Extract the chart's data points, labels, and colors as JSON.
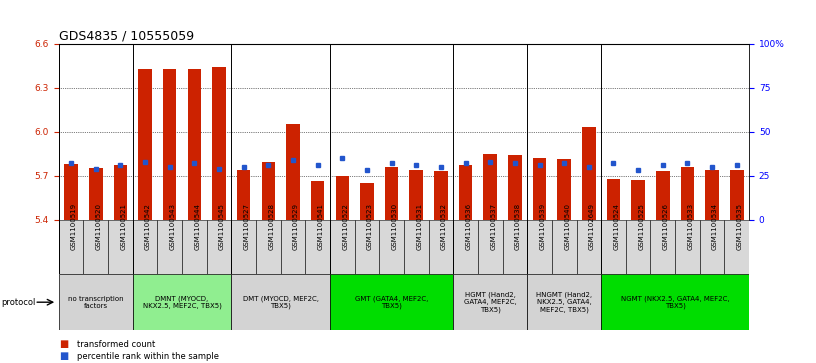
{
  "title": "GDS4835 / 10555059",
  "samples": [
    "GSM1100519",
    "GSM1100520",
    "GSM1100521",
    "GSM1100542",
    "GSM1100543",
    "GSM1100544",
    "GSM1100545",
    "GSM1100527",
    "GSM1100528",
    "GSM1100529",
    "GSM1100541",
    "GSM1100522",
    "GSM1100523",
    "GSM1100530",
    "GSM1100531",
    "GSM1100532",
    "GSM1100536",
    "GSM1100537",
    "GSM1100538",
    "GSM1100539",
    "GSM1100540",
    "GSM1102649",
    "GSM1100524",
    "GSM1100525",
    "GSM1100526",
    "GSM1100533",
    "GSM1100534",
    "GSM1100535"
  ],
  "red_values": [
    5.78,
    5.75,
    5.77,
    6.43,
    6.43,
    6.43,
    6.44,
    5.74,
    5.79,
    6.05,
    5.66,
    5.7,
    5.65,
    5.76,
    5.74,
    5.73,
    5.77,
    5.85,
    5.84,
    5.82,
    5.81,
    6.03,
    5.68,
    5.67,
    5.73,
    5.76,
    5.74,
    5.74
  ],
  "blue_values": [
    32,
    29,
    31,
    33,
    30,
    32,
    29,
    30,
    31,
    34,
    31,
    35,
    28,
    32,
    31,
    30,
    32,
    33,
    32,
    31,
    32,
    30,
    32,
    28,
    31,
    32,
    30,
    31
  ],
  "y_min": 5.4,
  "y_max": 6.6,
  "y_ticks_red": [
    5.4,
    5.7,
    6.0,
    6.3,
    6.6
  ],
  "y_ticks_blue": [
    0,
    25,
    50,
    75,
    100
  ],
  "protocol_groups": [
    {
      "label": "no transcription\nfactors",
      "color": "#d3d3d3",
      "start": 0,
      "end": 3
    },
    {
      "label": "DMNT (MYOCD,\nNKX2.5, MEF2C, TBX5)",
      "color": "#90ee90",
      "start": 3,
      "end": 7
    },
    {
      "label": "DMT (MYOCD, MEF2C,\nTBX5)",
      "color": "#d3d3d3",
      "start": 7,
      "end": 11
    },
    {
      "label": "GMT (GATA4, MEF2C,\nTBX5)",
      "color": "#00dd00",
      "start": 11,
      "end": 16
    },
    {
      "label": "HGMT (Hand2,\nGATA4, MEF2C,\nTBX5)",
      "color": "#d3d3d3",
      "start": 16,
      "end": 19
    },
    {
      "label": "HNGMT (Hand2,\nNKX2.5, GATA4,\nMEF2C, TBX5)",
      "color": "#d3d3d3",
      "start": 19,
      "end": 22
    },
    {
      "label": "NGMT (NKX2.5, GATA4, MEF2C,\nTBX5)",
      "color": "#00dd00",
      "start": 22,
      "end": 28
    }
  ],
  "group_boundaries": [
    0,
    3,
    7,
    11,
    16,
    19,
    22,
    28
  ],
  "bar_width": 0.55,
  "red_color": "#cc2200",
  "blue_color": "#2255cc",
  "bg_color": "#ffffff",
  "title_fontsize": 9,
  "tick_fontsize": 6.5,
  "sample_fontsize": 5.0,
  "proto_fontsize": 5.0
}
